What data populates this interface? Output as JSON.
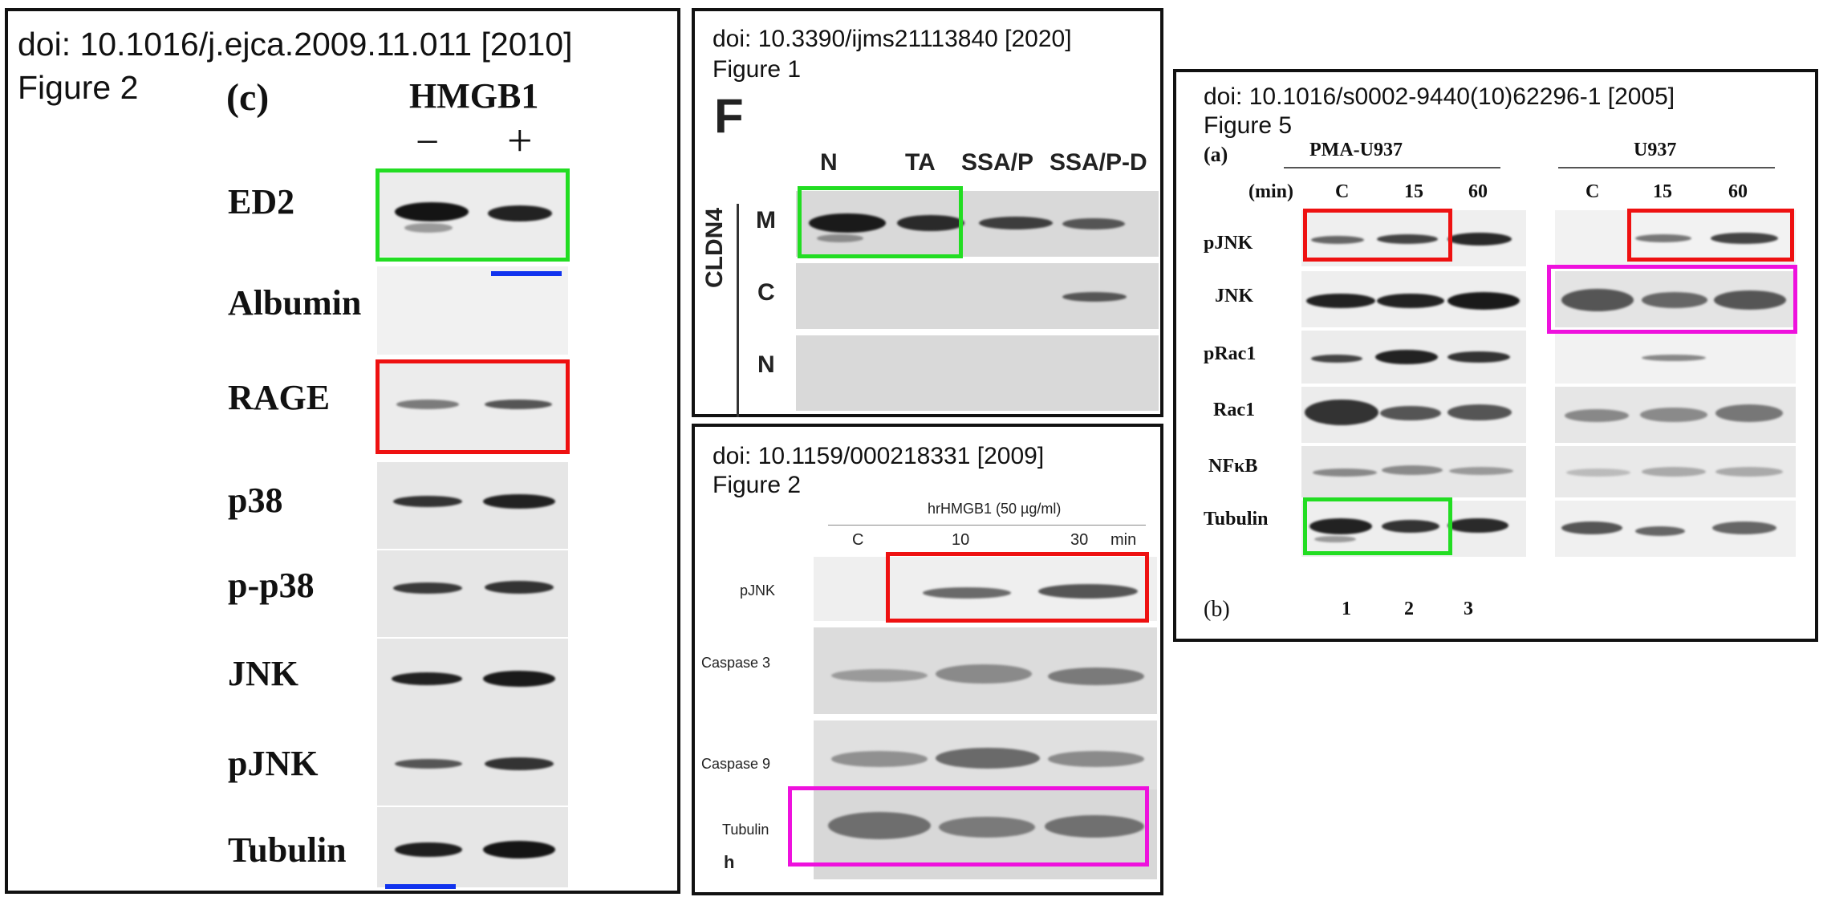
{
  "colors": {
    "duplicate_1": "#22dd22",
    "duplicate_2": "#ee1111",
    "duplicate_3": "#ee11dd",
    "underline": "#1133ee"
  },
  "panel_a": {
    "doi": "doi: 10.1016/j.ejca.2009.11.011 [2010]",
    "figure": "Figure 2",
    "panel_letter": "(c)",
    "treatment": "HMGB1",
    "minus": "−",
    "plus": "+",
    "rows": [
      "ED2",
      "Albumin",
      "RAGE",
      "p38",
      "p-p38",
      "JNK",
      "pJNK",
      "Tubulin"
    ]
  },
  "panel_b": {
    "doi": "doi: 10.3390/ijms21113840 [2020]",
    "figure": "Figure 1",
    "panel_letter": "F",
    "columns": [
      "N",
      "TA",
      "SSA/P",
      "SSA/P-D"
    ],
    "gene": "CLDN4",
    "rows": [
      "M",
      "C",
      "N"
    ]
  },
  "panel_c": {
    "doi": "doi: 10.1159/000218331 [2009]",
    "figure": "Figure 2",
    "treatment": "hrHMGB1 (50 µg/ml)",
    "times": [
      "C",
      "10",
      "30"
    ],
    "unit": "min",
    "rows": [
      "pJNK",
      "Caspase 3",
      "Caspase 9",
      "Tubulin"
    ],
    "corner": "h"
  },
  "panel_d": {
    "doi": "doi: 10.1016/s0002-9440(10)62296-1 [2005]",
    "figure": "Figure 5",
    "label_a": "(a)",
    "label_b": "(b)",
    "group1": "PMA-U937",
    "group2": "U937",
    "time_label": "(min)",
    "times": [
      "C",
      "15",
      "60",
      "C",
      "15",
      "60"
    ],
    "rows": [
      "pJNK",
      "JNK",
      "pRac1",
      "Rac1",
      "NFκB",
      "Tubulin"
    ],
    "lanes": [
      "1",
      "2",
      "3"
    ]
  }
}
